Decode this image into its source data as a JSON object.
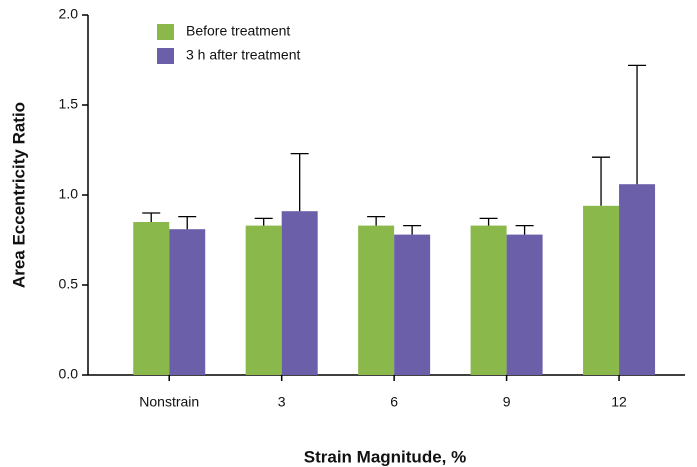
{
  "chart_data": {
    "type": "bar",
    "x_label": "Strain Magnitude, %",
    "y_label": "Area Eccentricity Ratio",
    "categories": [
      "Nonstrain",
      "3",
      "6",
      "9",
      "12"
    ],
    "series": [
      {
        "name": "Before treatment",
        "color": "#8ab84a",
        "values": [
          0.85,
          0.83,
          0.83,
          0.83,
          0.94
        ],
        "errors": [
          0.05,
          0.04,
          0.05,
          0.04,
          0.27
        ]
      },
      {
        "name": "3 h after treatment",
        "color": "#6a5fa8",
        "values": [
          0.81,
          0.91,
          0.78,
          0.78,
          1.06
        ],
        "errors": [
          0.07,
          0.32,
          0.05,
          0.05,
          0.66
        ]
      }
    ],
    "ylim": [
      0,
      2
    ],
    "yticks": [
      {
        "value": 0,
        "label": "0.0"
      },
      {
        "value": 0.5,
        "label": "0.5"
      },
      {
        "value": 1,
        "label": "1.0"
      },
      {
        "value": 1.5,
        "label": "1.5"
      },
      {
        "value": 2,
        "label": "2.0"
      }
    ],
    "legend": "top-left",
    "grid": false
  }
}
